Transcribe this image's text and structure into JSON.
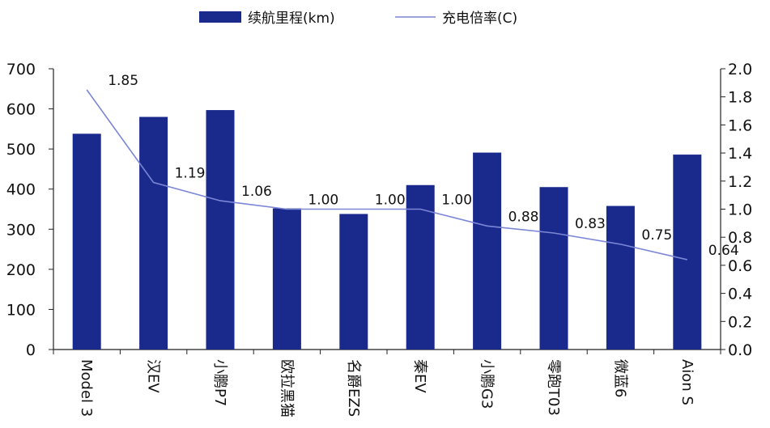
{
  "chart_data": {
    "type": "bar",
    "categories": [
      "Model 3",
      "汉EV",
      "小鹏P7",
      "欧拉黑猫",
      "名爵EZS",
      "秦EV",
      "小鹏G3",
      "零跑T03",
      "微蓝6",
      "Aion S"
    ],
    "series": [
      {
        "name": "续航里程(km)",
        "kind": "bar",
        "axis": "left",
        "values": [
          538,
          580,
          597,
          352,
          338,
          410,
          491,
          405,
          358,
          486
        ]
      },
      {
        "name": "充电倍率(C)",
        "kind": "line",
        "axis": "right",
        "values": [
          1.85,
          1.19,
          1.06,
          1.0,
          1.0,
          1.0,
          0.88,
          0.83,
          0.75,
          0.64
        ],
        "labels": [
          "1.85",
          "1.19",
          "1.06",
          "1.00",
          "1.00",
          "1.00",
          "0.88",
          "0.83",
          "0.75",
          "0.64"
        ]
      }
    ],
    "y_left": {
      "ylim": [
        0,
        700
      ],
      "ticks": [
        "0",
        "100",
        "200",
        "300",
        "400",
        "500",
        "600",
        "700"
      ]
    },
    "y_right": {
      "ylim": [
        0,
        2.0
      ],
      "ticks": [
        "0.0",
        "0.2",
        "0.4",
        "0.6",
        "0.8",
        "1.0",
        "1.2",
        "1.4",
        "1.6",
        "1.8",
        "2.0"
      ]
    },
    "grid": false,
    "legend_position": "top-center",
    "colors": {
      "bar": "#1a2a8c",
      "line": "#7b86d6",
      "axis": "#222222"
    }
  }
}
